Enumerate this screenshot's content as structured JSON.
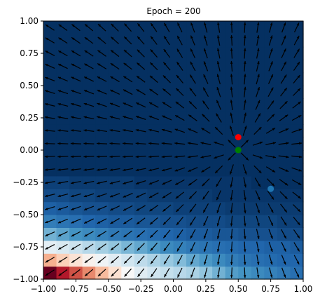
{
  "chart_data": {
    "type": "heatmap",
    "title": "Epoch = 200",
    "xlim": [
      -1.0,
      1.0
    ],
    "ylim": [
      -1.0,
      1.0
    ],
    "xticks": [
      "−1.00",
      "−0.75",
      "−0.50",
      "−0.25",
      "0.00",
      "0.25",
      "0.50",
      "0.75",
      "1.00"
    ],
    "yticks": [
      "−1.00",
      "−0.75",
      "−0.50",
      "−0.25",
      "0.00",
      "0.25",
      "0.50",
      "0.75",
      "1.00"
    ],
    "xlabel": "",
    "ylabel": "",
    "grid": false,
    "colormap": "RdBu",
    "heatmap_rows_bottom_up": [
      [
        0.0,
        0.1,
        0.18,
        0.26,
        0.34,
        0.42,
        0.5,
        0.56,
        0.6,
        0.62,
        0.64,
        0.66,
        0.7,
        0.74,
        0.78,
        0.8,
        0.82,
        0.84,
        0.86,
        0.88
      ],
      [
        0.32,
        0.38,
        0.43,
        0.48,
        0.52,
        0.56,
        0.6,
        0.63,
        0.66,
        0.69,
        0.72,
        0.76,
        0.79,
        0.82,
        0.85,
        0.87,
        0.88,
        0.89,
        0.9,
        0.9
      ],
      [
        0.55,
        0.58,
        0.61,
        0.64,
        0.67,
        0.7,
        0.73,
        0.76,
        0.79,
        0.82,
        0.84,
        0.86,
        0.87,
        0.88,
        0.89,
        0.9,
        0.9,
        0.91,
        0.91,
        0.92
      ],
      [
        0.74,
        0.77,
        0.8,
        0.82,
        0.84,
        0.86,
        0.87,
        0.88,
        0.89,
        0.9,
        0.91,
        0.92,
        0.92,
        0.93,
        0.93,
        0.94,
        0.94,
        0.94,
        0.95,
        0.95
      ],
      [
        0.85,
        0.87,
        0.88,
        0.9,
        0.91,
        0.92,
        0.92,
        0.93,
        0.93,
        0.94,
        0.94,
        0.95,
        0.95,
        0.95,
        0.96,
        0.96,
        0.96,
        0.96,
        0.97,
        0.97
      ],
      [
        0.91,
        0.92,
        0.93,
        0.94,
        0.94,
        0.95,
        0.95,
        0.96,
        0.96,
        0.96,
        0.97,
        0.97,
        0.97,
        0.97,
        0.98,
        0.98,
        0.98,
        0.98,
        0.98,
        0.98
      ],
      [
        0.95,
        0.95,
        0.96,
        0.96,
        0.97,
        0.97,
        0.97,
        0.97,
        0.98,
        0.98,
        0.98,
        0.98,
        0.98,
        0.99,
        0.99,
        0.99,
        0.99,
        0.99,
        0.99,
        0.99
      ],
      [
        0.97,
        0.97,
        0.98,
        0.98,
        0.98,
        0.98,
        0.98,
        0.99,
        0.99,
        0.99,
        0.99,
        0.99,
        0.99,
        0.99,
        0.99,
        0.99,
        1.0,
        1.0,
        1.0,
        1.0
      ]
    ],
    "heatmap_default_value": 1.0,
    "vector_field": {
      "grid_points": 20,
      "description": "quiver arrows pointing away from a source near (0.5, 0.0)"
    },
    "points": [
      {
        "x": 0.5,
        "y": 0.1,
        "color": "#ff0000"
      },
      {
        "x": 0.5,
        "y": 0.0,
        "color": "#008000"
      },
      {
        "x": 0.75,
        "y": -0.3,
        "color": "#1f77b4"
      }
    ]
  }
}
